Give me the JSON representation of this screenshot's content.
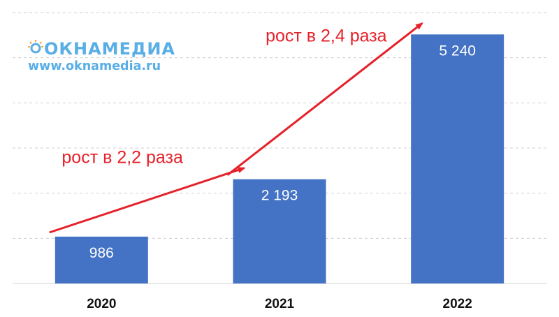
{
  "brand": {
    "logo_text": "ОКНАМЕДИА",
    "url": "www.oknamedia.ru",
    "color": "#5aaee6"
  },
  "chart_data": {
    "type": "bar",
    "categories": [
      "2020",
      "2021",
      "2022"
    ],
    "values": [
      986,
      2193,
      5240
    ],
    "value_labels": [
      "986",
      "2 193",
      "5 240"
    ],
    "ylim": [
      0,
      5700
    ],
    "grid": true,
    "bar_color": "#4472c4",
    "annotations": [
      {
        "text": "рост в 2,2 раза",
        "from": "2020",
        "to": "2021",
        "color": "#e5212a"
      },
      {
        "text": "рост в 2,4 раза",
        "from": "2021",
        "to": "2022",
        "color": "#e5212a"
      }
    ]
  }
}
